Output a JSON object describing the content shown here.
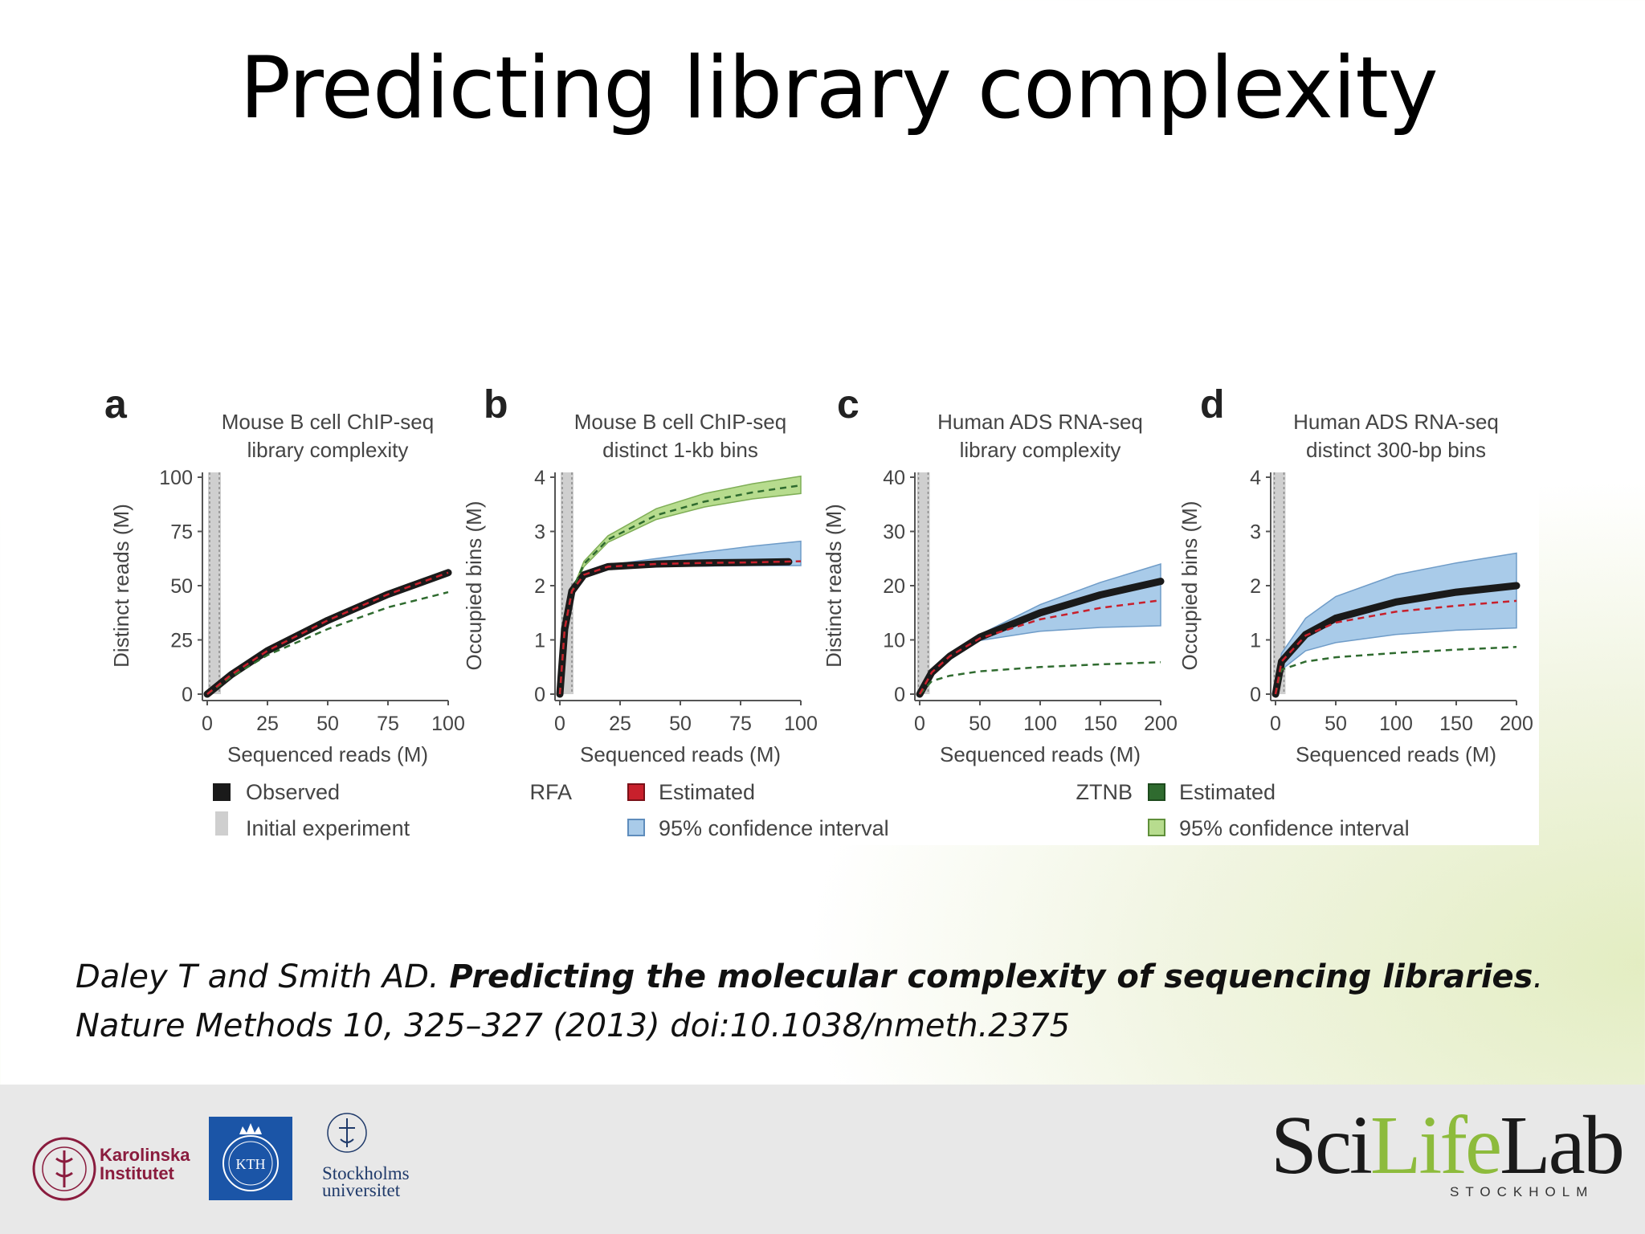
{
  "slide": {
    "title": "Predicting library complexity",
    "citation_authors": "Daley T and Smith AD. ",
    "citation_title": "Predicting the molecular complexity of sequencing libraries",
    "citation_title_end": ".",
    "citation_journal": "Nature Methods 10, 325–327 (2013) doi:10.1038/nmeth.2375"
  },
  "footer": {
    "ki_line1": "Karolinska",
    "ki_line2": "Institutet",
    "kth_text": "KTH",
    "su_line1": "Stockholms",
    "su_line2": "universitet",
    "scilifelab_sci": "Sci",
    "scilifelab_life": "Life",
    "scilifelab_lab": "Lab",
    "scilifelab_sub": "STOCKHOLM"
  },
  "colors": {
    "observed": "#1a1a1a",
    "rfa_estimated": "#c8202c",
    "rfa_ci": "#a9cbe9",
    "ztnb_estimated": "#2f6b2f",
    "ztnb_ci": "#b7dc8e",
    "initial": "#cfcfcf"
  },
  "legends": {
    "observed": "Observed",
    "initial": "Initial experiment",
    "rfa": "RFA",
    "ztnb": "ZTNB",
    "estimated_rfa": "Estimated",
    "estimated_ztnb": "Estimated",
    "ci_rfa": "95% confidence interval",
    "ci_ztnb": "95% confidence interval"
  },
  "chart_data": [
    {
      "panel": "a",
      "type": "line",
      "title_line1": "Mouse B cell ChIP-seq",
      "title_line2": "library complexity",
      "xlabel": "Sequenced reads (M)",
      "ylabel": "Distinct reads (M)",
      "xlim": [
        0,
        100
      ],
      "ylim": [
        0,
        100
      ],
      "xticks": [
        0,
        25,
        50,
        75,
        100
      ],
      "yticks": [
        0,
        25,
        50,
        75,
        100
      ],
      "initial_experiment_x": 3,
      "series": [
        {
          "name": "Observed",
          "x": [
            0,
            10,
            25,
            50,
            75,
            100
          ],
          "y": [
            0,
            9,
            20,
            34,
            46,
            56
          ]
        },
        {
          "name": "RFA Estimated",
          "x": [
            0,
            10,
            25,
            50,
            75,
            100
          ],
          "y": [
            0,
            9,
            20,
            34,
            46,
            56
          ]
        },
        {
          "name": "ZTNB Estimated",
          "x": [
            0,
            10,
            25,
            50,
            75,
            100
          ],
          "y": [
            0,
            8,
            18,
            30,
            40,
            47
          ]
        }
      ]
    },
    {
      "panel": "b",
      "type": "line",
      "title_line1": "Mouse B cell ChIP-seq",
      "title_line2": "distinct 1-kb bins",
      "xlabel": "Sequenced reads (M)",
      "ylabel": "Occupied bins (M)",
      "xlim": [
        0,
        100
      ],
      "ylim": [
        0,
        4
      ],
      "xticks": [
        0,
        25,
        50,
        75,
        100
      ],
      "yticks": [
        0,
        1,
        2,
        3,
        4
      ],
      "initial_experiment_x": 3,
      "series": [
        {
          "name": "Observed",
          "x": [
            0,
            2,
            5,
            10,
            20,
            40,
            60,
            80,
            95
          ],
          "y": [
            0,
            1.2,
            1.9,
            2.2,
            2.35,
            2.4,
            2.42,
            2.43,
            2.44
          ]
        },
        {
          "name": "RFA Estimated",
          "x": [
            0,
            2,
            5,
            10,
            20,
            40,
            60,
            80,
            100
          ],
          "y": [
            0,
            1.2,
            1.9,
            2.2,
            2.35,
            2.4,
            2.42,
            2.43,
            2.45
          ],
          "ci_lower": [
            0,
            1.2,
            1.9,
            2.2,
            2.33,
            2.36,
            2.36,
            2.37,
            2.37
          ],
          "ci_upper": [
            0,
            1.2,
            1.9,
            2.2,
            2.38,
            2.5,
            2.62,
            2.73,
            2.82
          ]
        },
        {
          "name": "ZTNB Estimated",
          "x": [
            0,
            2,
            5,
            10,
            20,
            40,
            60,
            80,
            100
          ],
          "y": [
            0,
            1.2,
            1.9,
            2.4,
            2.85,
            3.3,
            3.55,
            3.72,
            3.85
          ],
          "ci_lower": [
            0,
            1.2,
            1.9,
            2.35,
            2.8,
            3.22,
            3.45,
            3.6,
            3.7
          ],
          "ci_upper": [
            0,
            1.2,
            1.9,
            2.45,
            2.92,
            3.42,
            3.7,
            3.88,
            4.02
          ]
        }
      ]
    },
    {
      "panel": "c",
      "type": "line",
      "title_line1": "Human ADS RNA-seq",
      "title_line2": "library complexity",
      "xlabel": "Sequenced reads (M)",
      "ylabel": "Distinct reads (M)",
      "xlim": [
        0,
        200
      ],
      "ylim": [
        0,
        40
      ],
      "xticks": [
        0,
        50,
        100,
        150,
        200
      ],
      "yticks": [
        0,
        10,
        20,
        30,
        40
      ],
      "initial_experiment_x": 3,
      "series": [
        {
          "name": "Observed",
          "x": [
            0,
            10,
            25,
            50,
            100,
            150,
            200
          ],
          "y": [
            0,
            4,
            7,
            10.5,
            15,
            18.3,
            20.8
          ]
        },
        {
          "name": "RFA Estimated",
          "x": [
            0,
            10,
            25,
            50,
            100,
            150,
            200
          ],
          "y": [
            0,
            4,
            7,
            10.3,
            13.8,
            15.9,
            17.3
          ],
          "ci_lower": [
            0,
            4,
            7,
            9.9,
            11.6,
            12.3,
            12.6
          ],
          "ci_upper": [
            0,
            4,
            7,
            11,
            16.5,
            20.6,
            24
          ]
        },
        {
          "name": "ZTNB Estimated",
          "x": [
            0,
            10,
            25,
            50,
            100,
            150,
            200
          ],
          "y": [
            0,
            2.4,
            3.4,
            4.2,
            5,
            5.5,
            5.9
          ]
        }
      ]
    },
    {
      "panel": "d",
      "type": "line",
      "title_line1": "Human ADS RNA-seq",
      "title_line2": "distinct 300-bp bins",
      "xlabel": "Sequenced reads (M)",
      "ylabel": "Occupied bins (M)",
      "xlim": [
        0,
        200
      ],
      "ylim": [
        0,
        4
      ],
      "xticks": [
        0,
        50,
        100,
        150,
        200
      ],
      "yticks": [
        0,
        1,
        2,
        3,
        4
      ],
      "initial_experiment_x": 3,
      "series": [
        {
          "name": "Observed",
          "x": [
            0,
            5,
            25,
            50,
            100,
            150,
            200
          ],
          "y": [
            0,
            0.6,
            1.1,
            1.4,
            1.7,
            1.88,
            2
          ]
        },
        {
          "name": "RFA Estimated",
          "x": [
            0,
            5,
            25,
            50,
            100,
            150,
            200
          ],
          "y": [
            0,
            0.6,
            1.08,
            1.32,
            1.52,
            1.63,
            1.72
          ],
          "ci_lower": [
            0,
            0.45,
            0.8,
            0.95,
            1.1,
            1.18,
            1.22
          ],
          "ci_upper": [
            0,
            0.75,
            1.4,
            1.8,
            2.2,
            2.42,
            2.6
          ]
        },
        {
          "name": "ZTNB Estimated",
          "x": [
            0,
            5,
            25,
            50,
            100,
            150,
            200
          ],
          "y": [
            0,
            0.45,
            0.6,
            0.68,
            0.76,
            0.82,
            0.87
          ]
        }
      ]
    }
  ]
}
